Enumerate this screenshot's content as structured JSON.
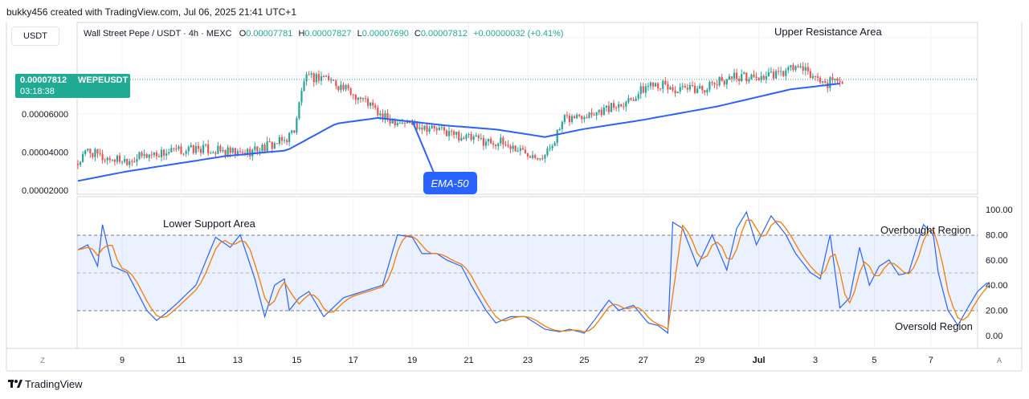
{
  "header": {
    "credit": "bukky456 created with TradingView.com, Jul 06, 2025 21:41 UTC+1",
    "currency_button": "USDT"
  },
  "legend": {
    "symbol": "Wall Street Pepe / USDT · 4h · MEXC",
    "open_label": "O",
    "open": "0.00007781",
    "high_label": "H",
    "high": "0.00007827",
    "low_label": "L",
    "low": "0.00007690",
    "close_label": "C",
    "close": "0.00007812",
    "change": "+0.00000032 (+0.41%)"
  },
  "price_tag": {
    "price": "0.00007812",
    "symbol": "WEPEUSDT",
    "countdown": "03:18:38"
  },
  "annotations": {
    "upper_resistance": "Upper Resistance Area",
    "lower_support": "Lower Support Area",
    "ema_callout": "EMA-50",
    "overbought": "Overbought Region",
    "oversold": "Oversold Region"
  },
  "footer": {
    "brand": "TradingView",
    "z_button": "Z",
    "a_button": "A"
  },
  "colors": {
    "up": "#26a69a",
    "down": "#ef5350",
    "ema": "#2962ff",
    "stoch_k": "#2962ff",
    "stoch_d": "#f57c00",
    "band": "#2962ff",
    "tag": "#22ab94"
  },
  "chart_data": [
    {
      "type": "candlestick",
      "title": "Wall Street Pepe / USDT · 4h · MEXC",
      "ylim": [
        1.8e-05,
        0.000108
      ],
      "y_ticks": [
        "0.00002000",
        "0.00004000",
        "0.00006000"
      ],
      "x_ticks": [
        "9",
        "11",
        "13",
        "15",
        "17",
        "19",
        "21",
        "23",
        "25",
        "27",
        "29",
        "Jul",
        "3",
        "5",
        "7"
      ],
      "last_price": 7.812e-05,
      "price_anchors_t_close": [
        [
          0,
          3.4e-05
        ],
        [
          4,
          4.1e-05
        ],
        [
          10,
          3.7e-05
        ],
        [
          20,
          3.6e-05
        ],
        [
          30,
          3.9e-05
        ],
        [
          50,
          4.2e-05
        ],
        [
          66,
          3.9e-05
        ],
        [
          74,
          4.2e-05
        ],
        [
          84,
          4.6e-05
        ],
        [
          88,
          5.2e-05
        ],
        [
          92,
          7.8e-05
        ],
        [
          100,
          8e-05
        ],
        [
          110,
          7.2e-05
        ],
        [
          118,
          6.6e-05
        ],
        [
          124,
          5.8e-05
        ],
        [
          140,
          5.4e-05
        ],
        [
          160,
          4.7e-05
        ],
        [
          172,
          4.5e-05
        ],
        [
          180,
          4.1e-05
        ],
        [
          190,
          3.8e-05
        ],
        [
          193,
          4.5e-05
        ],
        [
          198,
          5.7e-05
        ],
        [
          206,
          6e-05
        ],
        [
          216,
          6.3e-05
        ],
        [
          226,
          6.9e-05
        ],
        [
          234,
          7.7e-05
        ],
        [
          244,
          7.2e-05
        ],
        [
          256,
          7.4e-05
        ],
        [
          266,
          8e-05
        ],
        [
          276,
          7.9e-05
        ],
        [
          286,
          8.1e-05
        ],
        [
          292,
          8.5e-05
        ],
        [
          300,
          7.9e-05
        ],
        [
          304,
          7.6e-05
        ],
        [
          310,
          7.8e-05
        ]
      ],
      "ema50_anchors_t_value": [
        [
          0,
          2.5e-05
        ],
        [
          20,
          3e-05
        ],
        [
          60,
          3.8e-05
        ],
        [
          85,
          4.1e-05
        ],
        [
          105,
          5.5e-05
        ],
        [
          122,
          5.8e-05
        ],
        [
          150,
          5.4e-05
        ],
        [
          170,
          5.2e-05
        ],
        [
          190,
          4.8e-05
        ],
        [
          205,
          5.2e-05
        ],
        [
          230,
          5.7e-05
        ],
        [
          260,
          6.4e-05
        ],
        [
          290,
          7.3e-05
        ],
        [
          310,
          7.6e-05
        ]
      ]
    },
    {
      "type": "line",
      "title": "",
      "ylim": [
        0,
        100
      ],
      "y_ticks": [
        "100.00",
        "80.00",
        "60.00",
        "40.00",
        "20.00",
        "0.00"
      ],
      "band": [
        20,
        80
      ],
      "midline": 50,
      "series_k_anchors_t_value": [
        [
          0,
          68
        ],
        [
          4,
          72
        ],
        [
          8,
          55
        ],
        [
          10,
          88
        ],
        [
          14,
          55
        ],
        [
          20,
          50
        ],
        [
          24,
          35
        ],
        [
          28,
          20
        ],
        [
          32,
          12
        ],
        [
          36,
          18
        ],
        [
          40,
          25
        ],
        [
          48,
          40
        ],
        [
          56,
          78
        ],
        [
          62,
          70
        ],
        [
          66,
          80
        ],
        [
          72,
          45
        ],
        [
          76,
          15
        ],
        [
          80,
          40
        ],
        [
          84,
          45
        ],
        [
          86,
          20
        ],
        [
          90,
          30
        ],
        [
          94,
          35
        ],
        [
          100,
          15
        ],
        [
          108,
          30
        ],
        [
          116,
          35
        ],
        [
          124,
          40
        ],
        [
          130,
          80
        ],
        [
          136,
          78
        ],
        [
          140,
          65
        ],
        [
          146,
          65
        ],
        [
          150,
          60
        ],
        [
          156,
          55
        ],
        [
          160,
          40
        ],
        [
          166,
          20
        ],
        [
          170,
          10
        ],
        [
          176,
          15
        ],
        [
          182,
          15
        ],
        [
          186,
          10
        ],
        [
          190,
          5
        ],
        [
          196,
          3
        ],
        [
          200,
          5
        ],
        [
          206,
          2
        ],
        [
          210,
          12
        ],
        [
          216,
          28
        ],
        [
          220,
          20
        ],
        [
          226,
          24
        ],
        [
          232,
          10
        ],
        [
          236,
          8
        ],
        [
          240,
          2
        ],
        [
          242,
          90
        ],
        [
          246,
          85
        ],
        [
          252,
          55
        ],
        [
          258,
          80
        ],
        [
          264,
          52
        ],
        [
          268,
          85
        ],
        [
          272,
          98
        ],
        [
          276,
          72
        ],
        [
          282,
          95
        ],
        [
          288,
          80
        ],
        [
          292,
          65
        ],
        [
          298,
          50
        ],
        [
          302,
          45
        ],
        [
          306,
          80
        ],
        [
          310,
          22
        ],
        [
          314,
          30
        ],
        [
          318,
          70
        ],
        [
          322,
          40
        ],
        [
          326,
          55
        ],
        [
          330,
          60
        ],
        [
          334,
          48
        ],
        [
          338,
          50
        ],
        [
          344,
          88
        ],
        [
          348,
          80
        ],
        [
          350,
          50
        ],
        [
          354,
          20
        ],
        [
          358,
          8
        ],
        [
          362,
          22
        ],
        [
          366,
          35
        ],
        [
          370,
          42
        ]
      ]
    }
  ]
}
